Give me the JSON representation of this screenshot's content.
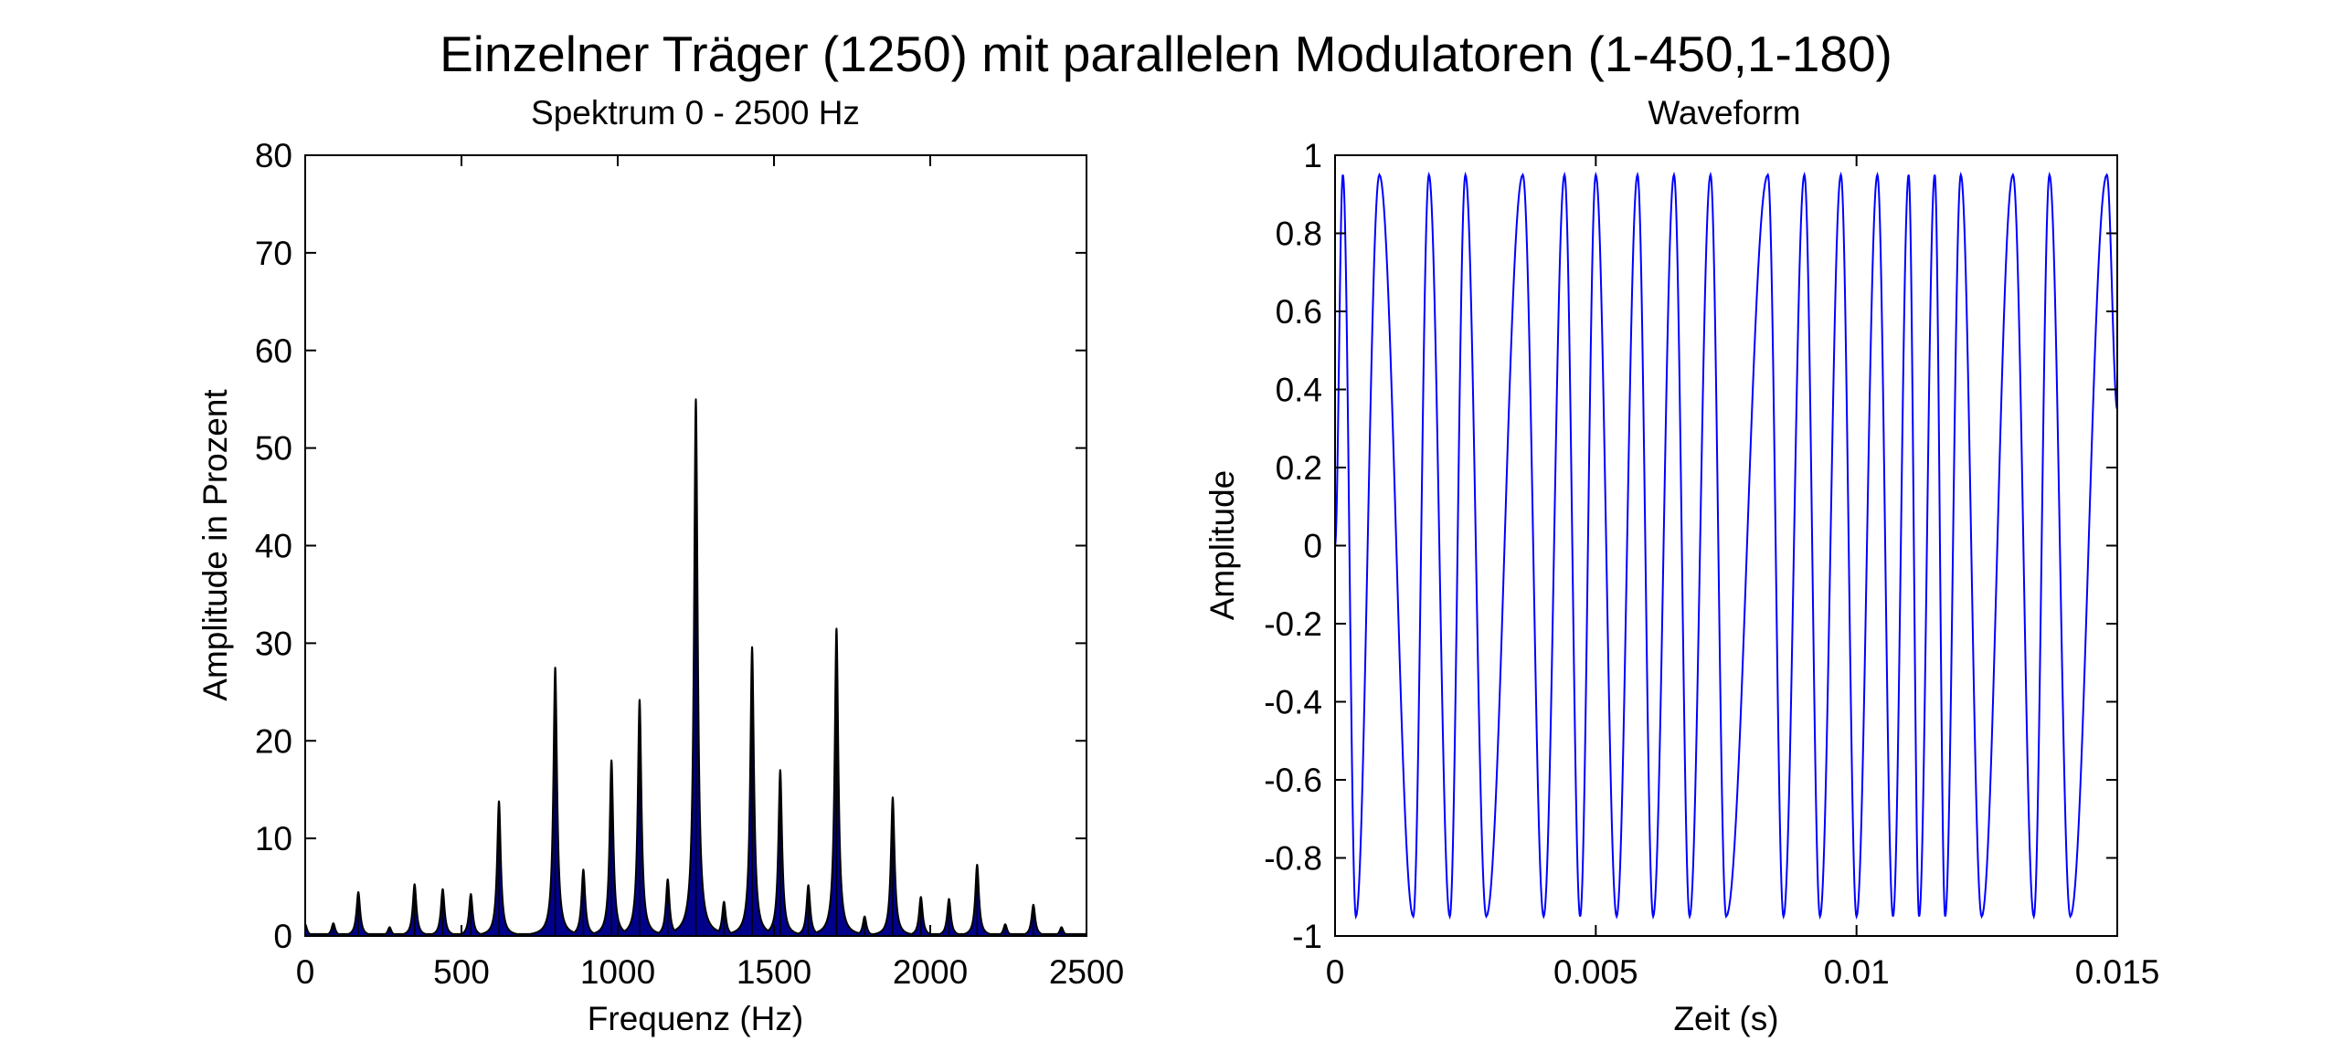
{
  "figure": {
    "title": "Einzelner Träger (1250) mit parallelen Modulatoren (1-450,1-180)"
  },
  "chart_data": [
    {
      "type": "area",
      "title": "Spektrum 0 - 2500 Hz",
      "xlabel": "Frequenz (Hz)",
      "ylabel": "Amplitude in Prozent",
      "xlim": [
        0,
        2500
      ],
      "ylim": [
        0,
        80
      ],
      "xticks": [
        0,
        500,
        1000,
        1500,
        2000,
        2500
      ],
      "yticks": [
        0,
        10,
        20,
        30,
        40,
        50,
        60,
        70,
        80
      ],
      "grid": false,
      "fill_color": "#00008b",
      "line_color": "#000000",
      "baseline": 0.2,
      "peaks": [
        {
          "x": 0,
          "y": 1.2
        },
        {
          "x": 90,
          "y": 1.3
        },
        {
          "x": 170,
          "y": 4.5
        },
        {
          "x": 270,
          "y": 0.9
        },
        {
          "x": 350,
          "y": 5.3
        },
        {
          "x": 440,
          "y": 4.8
        },
        {
          "x": 530,
          "y": 4.3
        },
        {
          "x": 620,
          "y": 13.8
        },
        {
          "x": 800,
          "y": 27.5
        },
        {
          "x": 890,
          "y": 6.8
        },
        {
          "x": 980,
          "y": 18
        },
        {
          "x": 1070,
          "y": 24.2
        },
        {
          "x": 1160,
          "y": 5.8
        },
        {
          "x": 1250,
          "y": 55
        },
        {
          "x": 1340,
          "y": 3.5
        },
        {
          "x": 1430,
          "y": 29.6
        },
        {
          "x": 1520,
          "y": 17
        },
        {
          "x": 1610,
          "y": 5.2
        },
        {
          "x": 1700,
          "y": 31.5
        },
        {
          "x": 1790,
          "y": 2
        },
        {
          "x": 1880,
          "y": 14.2
        },
        {
          "x": 1970,
          "y": 4
        },
        {
          "x": 2060,
          "y": 3.8
        },
        {
          "x": 2150,
          "y": 7.3
        },
        {
          "x": 2240,
          "y": 1.2
        },
        {
          "x": 2330,
          "y": 3.2
        },
        {
          "x": 2420,
          "y": 0.9
        }
      ]
    },
    {
      "type": "line",
      "title": "Waveform",
      "xlabel": "Zeit (s)",
      "ylabel": "Amplitude",
      "xlim": [
        0,
        0.015
      ],
      "ylim": [
        -1,
        1
      ],
      "xticks": [
        0,
        0.005,
        0.01,
        0.015
      ],
      "ytick_labels": [
        "1",
        "0.8",
        "0.6",
        "0.4",
        "0.2",
        "0",
        "-0.2",
        "-0.4",
        "-0.6",
        "-0.8",
        "-1"
      ],
      "yticks": [
        1,
        0.8,
        0.6,
        0.4,
        0.2,
        0,
        -0.2,
        -0.4,
        -0.6,
        -0.8,
        -1
      ],
      "grid": false,
      "line_color": "#0000ff",
      "amplitude": 0.95,
      "carrier_hz": 1250,
      "peak_times": [
        0.00015,
        0.00085,
        0.0018,
        0.0025,
        0.0036,
        0.0044,
        0.005,
        0.0058,
        0.0065,
        0.0072,
        0.0083,
        0.009,
        0.0097,
        0.0104,
        0.011,
        0.0115,
        0.012,
        0.013,
        0.0137,
        0.0148
      ],
      "trough_times": [
        0.0004,
        0.0015,
        0.0022,
        0.0029,
        0.004,
        0.0047,
        0.0054,
        0.0061,
        0.0068,
        0.0075,
        0.0086,
        0.0093,
        0.01,
        0.0107,
        0.0112,
        0.0117,
        0.0124,
        0.0134,
        0.0141
      ]
    }
  ]
}
